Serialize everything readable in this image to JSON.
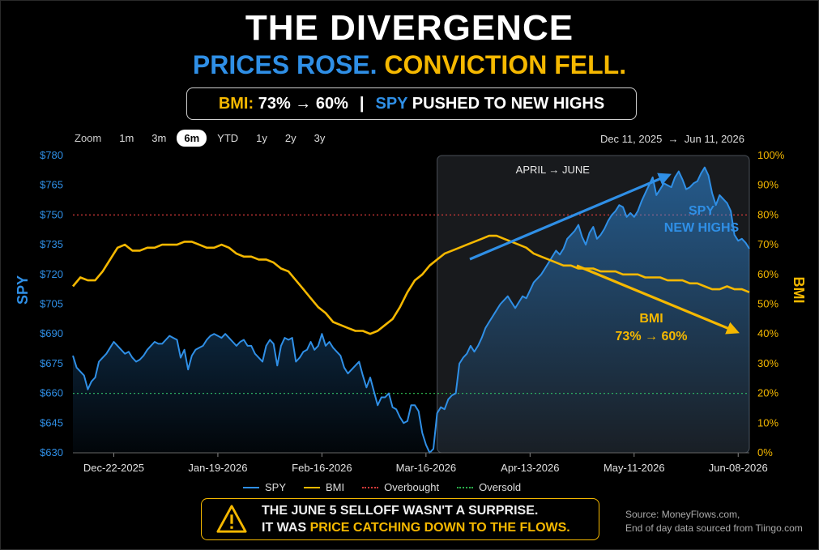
{
  "header": {
    "title": "THE DIVERGENCE",
    "subtitle_a": "PRICES ROSE.",
    "subtitle_b": "CONVICTION FELL.",
    "pill_bmi_label": "BMI:",
    "pill_bmi_value": "73% → 60%",
    "pill_sep": "|",
    "pill_spy_label": "SPY",
    "pill_spy_text": "PUSHED TO NEW HIGHS"
  },
  "zoom": {
    "label": "Zoom",
    "options": [
      "1m",
      "3m",
      "6m",
      "YTD",
      "1y",
      "2y",
      "3y"
    ],
    "active": "6m"
  },
  "date_range": {
    "from": "Dec 11, 2025",
    "arrow": "→",
    "to": "Jun 11, 2026"
  },
  "legend": {
    "spy": "SPY",
    "bmi": "BMI",
    "overbought": "Overbought",
    "oversold": "Oversold"
  },
  "warning": {
    "line1": "THE JUNE 5 SELLOFF WASN'T A SURPRISE.",
    "line2_a": "IT WAS",
    "line2_b": "PRICE CATCHING DOWN TO THE FLOWS."
  },
  "source": {
    "line1": "Source: MoneyFlows.com,",
    "line2": "End of day data sourced from Tiingo.com"
  },
  "colors": {
    "spy": "#2f8fe6",
    "bmi": "#f5b800",
    "overbought": "#d63a3a",
    "oversold": "#2bb24c"
  },
  "chart_data": {
    "type": "line",
    "left_axis_label": "SPY",
    "right_axis_label": "BMI",
    "left_ylim": [
      630,
      780
    ],
    "right_ylim": [
      0,
      100
    ],
    "left_ticks": [
      "$630",
      "$645",
      "$660",
      "$675",
      "$690",
      "$705",
      "$720",
      "$735",
      "$750",
      "$765",
      "$780"
    ],
    "left_tick_values": [
      630,
      645,
      660,
      675,
      690,
      705,
      720,
      735,
      750,
      765,
      780
    ],
    "right_ticks": [
      "0%",
      "10%",
      "20%",
      "30%",
      "40%",
      "50%",
      "60%",
      "70%",
      "80%",
      "90%",
      "100%"
    ],
    "right_tick_values": [
      0,
      10,
      20,
      30,
      40,
      50,
      60,
      70,
      80,
      90,
      100
    ],
    "xlim_days": [
      0,
      182
    ],
    "x_ticks": [
      "Dec-22-2025",
      "Jan-19-2026",
      "Feb-16-2026",
      "Mar-16-2026",
      "Apr-13-2026",
      "May-11-2026",
      "Jun-08-2026"
    ],
    "x_tick_days": [
      11,
      39,
      67,
      95,
      123,
      151,
      179
    ],
    "overbought_level_pct": 80,
    "oversold_level_pct": 20,
    "highlight": {
      "label": "APRIL → JUNE",
      "start_day": 98,
      "end_day": 182
    },
    "annotations": {
      "spy_line1": "SPY",
      "spy_line2": "NEW HIGHS",
      "bmi_line1": "BMI",
      "bmi_line2": "73% → 60%"
    },
    "series": [
      {
        "name": "SPY",
        "x": [
          0,
          1,
          2,
          3,
          4,
          5,
          6,
          7,
          8,
          9,
          10,
          11,
          12,
          13,
          14,
          15,
          16,
          17,
          18,
          19,
          20,
          21,
          22,
          23,
          24,
          25,
          26,
          27,
          28,
          29,
          30,
          31,
          32,
          33,
          34,
          35,
          36,
          37,
          38,
          39,
          40,
          41,
          42,
          43,
          44,
          45,
          46,
          47,
          48,
          49,
          50,
          51,
          52,
          53,
          54,
          55,
          56,
          57,
          58,
          59,
          60,
          61,
          62,
          63,
          64,
          65,
          66,
          67,
          68,
          69,
          70,
          71,
          72,
          73,
          74,
          75,
          76,
          77,
          78,
          79,
          80,
          81,
          82,
          83,
          84,
          85,
          86,
          87,
          88,
          89,
          90,
          91,
          92,
          93,
          94,
          95,
          96,
          97,
          98,
          99,
          100,
          101,
          102,
          103,
          104,
          105,
          106,
          107,
          108,
          109,
          110,
          111,
          112,
          113,
          114,
          115,
          116,
          117,
          118,
          119,
          120,
          121,
          122,
          123,
          124,
          125,
          126,
          127,
          128,
          129,
          130,
          131,
          132,
          133,
          134,
          135,
          136,
          137,
          138,
          139,
          140,
          141,
          142,
          143,
          144,
          145,
          146,
          147,
          148,
          149,
          150,
          151,
          152,
          153,
          154,
          155,
          156,
          157,
          158,
          159,
          160,
          161,
          162,
          163,
          164,
          165,
          166,
          167,
          168,
          169,
          170,
          171,
          172,
          173,
          174,
          175,
          176,
          177,
          178,
          179,
          180,
          181,
          182
        ],
        "values": [
          679,
          673,
          671,
          669,
          662,
          666,
          668,
          676,
          678,
          680,
          683,
          686,
          684,
          682,
          680,
          681,
          678,
          676,
          677,
          679,
          682,
          684,
          686,
          685,
          685,
          687,
          689,
          688,
          687,
          678,
          682,
          672,
          679,
          682,
          683,
          684,
          687,
          689,
          690,
          689,
          688,
          690,
          688,
          686,
          684,
          686,
          687,
          684,
          684,
          680,
          678,
          676,
          684,
          687,
          685,
          674,
          684,
          688,
          687,
          688,
          676,
          678,
          681,
          682,
          686,
          682,
          684,
          690,
          684,
          686,
          683,
          681,
          679,
          673,
          670,
          672,
          674,
          676,
          669,
          663,
          668,
          661,
          654,
          658,
          658,
          660,
          653,
          652,
          648,
          645,
          646,
          654,
          654,
          651,
          640,
          634,
          630,
          632,
          650,
          653,
          652,
          657,
          659,
          660,
          675,
          678,
          680,
          684,
          681,
          684,
          688,
          693,
          696,
          699,
          702,
          705,
          707,
          709,
          706,
          703,
          706,
          709,
          708,
          712,
          716,
          718,
          720,
          723,
          726,
          729,
          732,
          730,
          733,
          738,
          740,
          742,
          745,
          739,
          735,
          741,
          744,
          738,
          740,
          743,
          747,
          750,
          752,
          755,
          754,
          749,
          751,
          749,
          752,
          757,
          761,
          765,
          769,
          760,
          763,
          766,
          765,
          764,
          769,
          772,
          768,
          763,
          764,
          766,
          767,
          771,
          774,
          770,
          761,
          755,
          760,
          758,
          756,
          752,
          740,
          737,
          738,
          736,
          733
        ]
      },
      {
        "name": "BMI",
        "x": [
          0,
          2,
          4,
          6,
          8,
          10,
          12,
          14,
          16,
          18,
          20,
          22,
          24,
          26,
          28,
          30,
          32,
          34,
          36,
          38,
          40,
          42,
          44,
          46,
          48,
          50,
          52,
          54,
          56,
          58,
          60,
          62,
          64,
          66,
          68,
          70,
          72,
          74,
          76,
          78,
          80,
          82,
          84,
          86,
          88,
          90,
          92,
          94,
          96,
          98,
          100,
          102,
          104,
          106,
          108,
          110,
          112,
          114,
          116,
          118,
          120,
          122,
          124,
          126,
          128,
          130,
          132,
          134,
          136,
          138,
          140,
          142,
          144,
          146,
          148,
          150,
          152,
          154,
          156,
          158,
          160,
          162,
          164,
          166,
          168,
          170,
          172,
          174,
          176,
          178,
          180,
          182
        ],
        "values": [
          56,
          59,
          58,
          58,
          61,
          65,
          69,
          70,
          68,
          68,
          69,
          69,
          70,
          70,
          70,
          71,
          71,
          70,
          69,
          69,
          70,
          69,
          67,
          66,
          66,
          65,
          65,
          64,
          62,
          61,
          58,
          55,
          52,
          49,
          47,
          44,
          43,
          42,
          41,
          41,
          40,
          41,
          43,
          45,
          49,
          54,
          58,
          60,
          63,
          65,
          67,
          68,
          69,
          70,
          71,
          72,
          73,
          73,
          72,
          71,
          70,
          69,
          67,
          66,
          65,
          64,
          63,
          63,
          62,
          62,
          62,
          61,
          61,
          61,
          60,
          60,
          60,
          59,
          59,
          59,
          58,
          58,
          58,
          57,
          57,
          56,
          55,
          55,
          56,
          55,
          55,
          54
        ]
      }
    ]
  }
}
